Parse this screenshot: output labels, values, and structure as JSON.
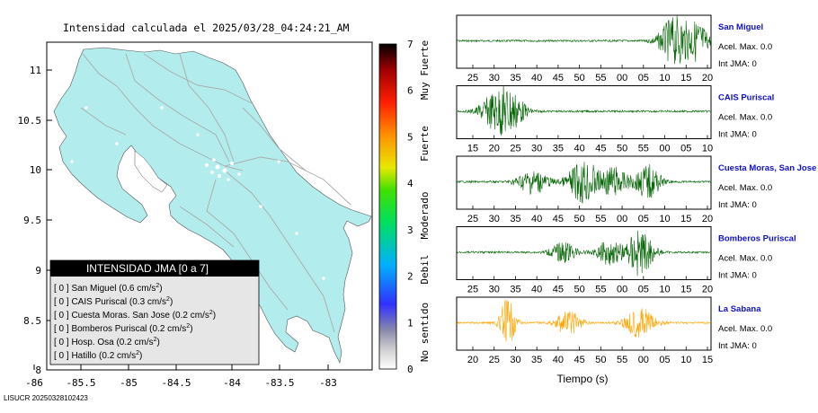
{
  "map": {
    "title": "Intensidad calculada el 2025/03/28_04:24:21_AM",
    "x_ticks": [
      "-86",
      "-85.5",
      "-85",
      "-84.5",
      "-84",
      "-83.5",
      "-83"
    ],
    "y_ticks": [
      "11",
      "10.5",
      "10",
      "9.5",
      "9",
      "8.5",
      "8"
    ],
    "legend": {
      "title": "INTENSIDAD JMA [0 a 7]",
      "items": [
        {
          "text": "[ 0 ]  San Miguel (0.6 cm/s",
          "sup": "2",
          "tail": ")"
        },
        {
          "text": "[ 0 ]  CAIS Puriscal (0.3 cm/s",
          "sup": "2",
          "tail": ")"
        },
        {
          "text": "[ 0 ]  Cuesta Moras. San Jose (0.2 cm/s",
          "sup": "2",
          "tail": ")"
        },
        {
          "text": "[ 0 ]  Bomberos Puriscal (0.2 cm/s",
          "sup": "2",
          "tail": ")"
        },
        {
          "text": "[ 0 ]  Hosp. Osa (0.2 cm/s",
          "sup": "2",
          "tail": ")"
        },
        {
          "text": "[ 0 ]  Hatillo (0.2 cm/s",
          "sup": "2",
          "tail": ")"
        }
      ]
    },
    "land_color": "#b2ecec"
  },
  "colorbar": {
    "ticks": [
      "7",
      "6",
      "5",
      "4",
      "3",
      "2",
      "1",
      "0"
    ],
    "labels": [
      "Muy Fuerte",
      "Fuerte",
      "Moderado",
      "Debil",
      "No sentido"
    ],
    "colors": [
      "#ffffff",
      "#9a9a9a",
      "#2020ff",
      "#00c0ff",
      "#00e000",
      "#e8e800",
      "#ff8000",
      "#ff0000",
      "#000000"
    ]
  },
  "chart_data": [
    {
      "type": "line",
      "name": "San Miguel",
      "station": "San Miguel",
      "accel_max_label": "Acel. Max. 0.0",
      "int_jma_label": "Int JMA: 0",
      "x_ticks": [
        "25",
        "30",
        "35",
        "40",
        "45",
        "50",
        "55",
        "00",
        "05",
        "10",
        "15",
        "20"
      ],
      "color": "#006400"
    },
    {
      "type": "line",
      "name": "CAIS Puriscal",
      "station": "CAIS Puriscal",
      "accel_max_label": "Acel. Max. 0.0",
      "int_jma_label": "Int JMA: 0",
      "x_ticks": [
        "15",
        "20",
        "25",
        "30",
        "35",
        "40",
        "45",
        "50",
        "55",
        "00",
        "05",
        "10"
      ],
      "color": "#006400"
    },
    {
      "type": "line",
      "name": "Cuesta Moras, San Jose",
      "station": "Cuesta Moras, San Jose",
      "accel_max_label": "Acel. Max. 0.0",
      "int_jma_label": "Int JMA: 0",
      "x_ticks": [
        "25",
        "30",
        "35",
        "40",
        "45",
        "50",
        "55",
        "00",
        "05",
        "10",
        "15",
        "20"
      ],
      "color": "#006400"
    },
    {
      "type": "line",
      "name": "Bomberos Puriscal",
      "station": "Bomberos Puriscal",
      "accel_max_label": "Acel. Max. 0.0",
      "int_jma_label": "Int JMA: 0",
      "x_ticks": [
        "25",
        "30",
        "35",
        "40",
        "45",
        "50",
        "55",
        "00",
        "05",
        "10",
        "15",
        "20"
      ],
      "color": "#006400"
    },
    {
      "type": "line",
      "name": "La Sabana",
      "station": "La Sabana",
      "accel_max_label": "Acel. Max. 0.0",
      "int_jma_label": "Int JMA: 0",
      "x_ticks": [
        "20",
        "25",
        "30",
        "35",
        "40",
        "45",
        "50",
        "55",
        "00",
        "05",
        "10",
        "15"
      ],
      "color": "#ffa500"
    }
  ],
  "waveform_xlabel": "Tiempo (s)",
  "footer": "LISUCR 20250328102423"
}
